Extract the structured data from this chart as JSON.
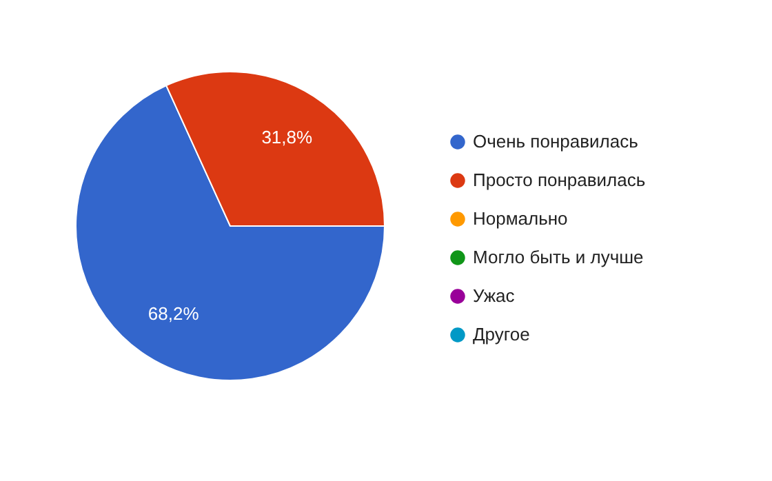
{
  "chart_data": {
    "type": "pie",
    "categories": [
      "Очень понравилась",
      "Просто понравилась",
      "Нормально",
      "Могло быть и лучше",
      "Ужас",
      "Другое"
    ],
    "values": [
      68.2,
      31.8,
      0,
      0,
      0,
      0
    ],
    "colors": [
      "#3366cc",
      "#dc3912",
      "#ff9900",
      "#109618",
      "#990099",
      "#0099c6"
    ],
    "value_labels": [
      "68,2%",
      "31,8%",
      null,
      null,
      null,
      null
    ],
    "legend": "right"
  }
}
